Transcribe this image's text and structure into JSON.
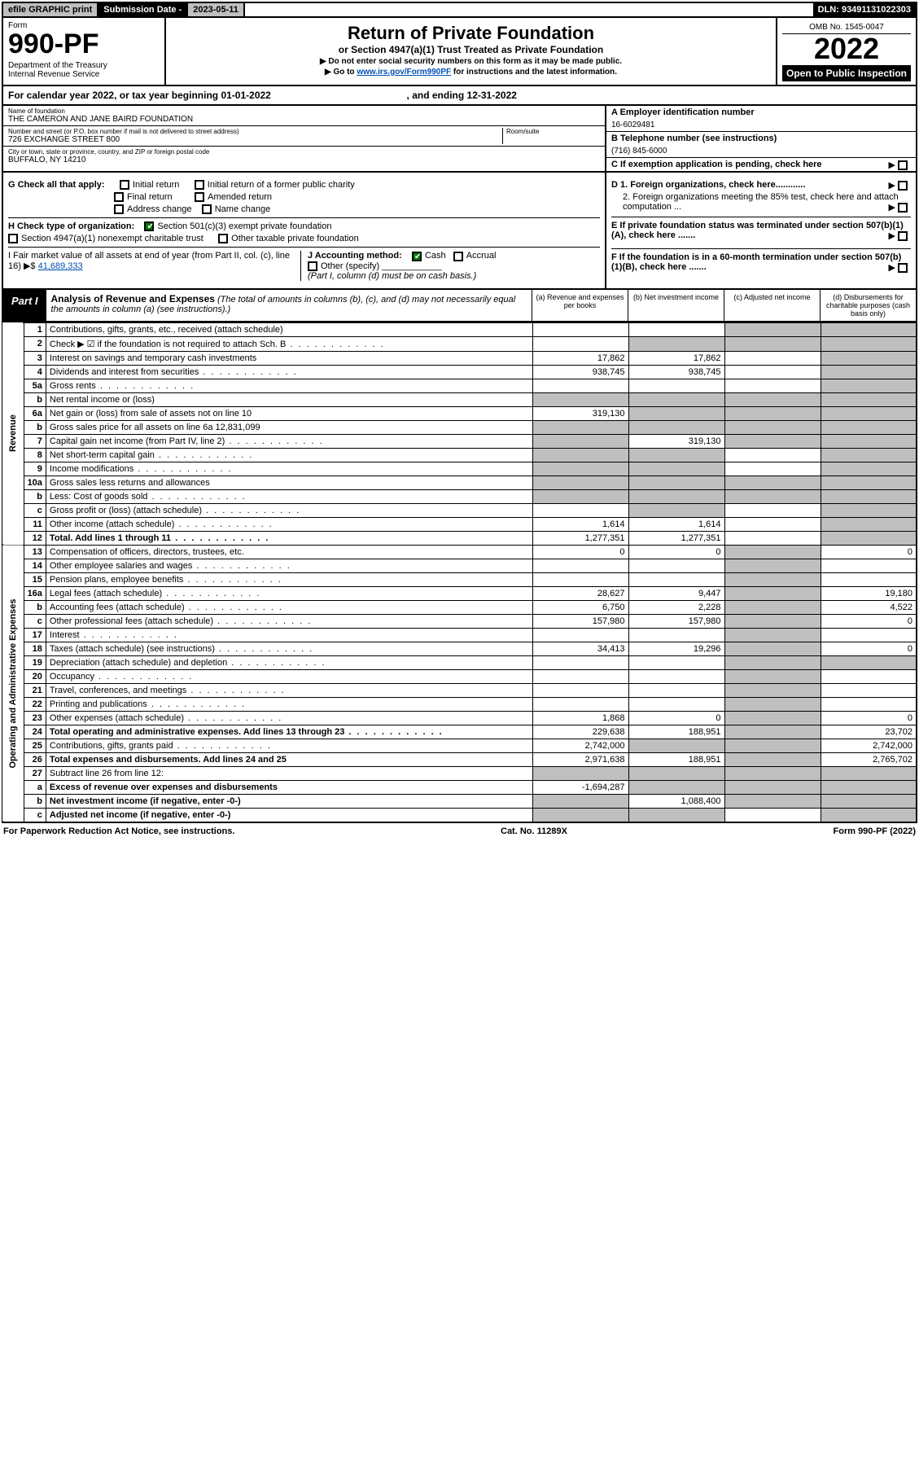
{
  "topbar": {
    "efile": "efile GRAPHIC print",
    "subLabel": "Submission Date - ",
    "subDate": "2023-05-11",
    "dln": "DLN: 93491131022303"
  },
  "header": {
    "formWord": "Form",
    "formNo": "990-PF",
    "dept": "Department of the Treasury\nInternal Revenue Service",
    "title": "Return of Private Foundation",
    "subtitle": "or Section 4947(a)(1) Trust Treated as Private Foundation",
    "instr1": "▶ Do not enter social security numbers on this form as it may be made public.",
    "instr2a": "▶ Go to ",
    "instr2link": "www.irs.gov/Form990PF",
    "instr2b": " for instructions and the latest information.",
    "omb": "OMB No. 1545-0047",
    "year": "2022",
    "open": "Open to Public Inspection"
  },
  "cal": {
    "text1": "For calendar year 2022, or tax year beginning ",
    "begin": "01-01-2022",
    "text2": ", and ending ",
    "end": "12-31-2022"
  },
  "info": {
    "nameLbl": "Name of foundation",
    "name": "THE CAMERON AND JANE BAIRD FOUNDATION",
    "addrLbl": "Number and street (or P.O. box number if mail is not delivered to street address)",
    "addr": "726 EXCHANGE STREET 800",
    "roomLbl": "Room/suite",
    "cityLbl": "City or town, state or province, country, and ZIP or foreign postal code",
    "city": "BUFFALO, NY  14210",
    "einLbl": "A Employer identification number",
    "ein": "16-6029481",
    "telLbl": "B Telephone number (see instructions)",
    "tel": "(716) 845-6000",
    "cLbl": "C If exemption application is pending, check here"
  },
  "checks": {
    "gLbl": "G Check all that apply:",
    "g1": "Initial return",
    "g2": "Initial return of a former public charity",
    "g3": "Final return",
    "g4": "Amended return",
    "g5": "Address change",
    "g6": "Name change",
    "hLbl": "H Check type of organization:",
    "h1": "Section 501(c)(3) exempt private foundation",
    "h2": "Section 4947(a)(1) nonexempt charitable trust",
    "h3": "Other taxable private foundation",
    "iLbl": "I Fair market value of all assets at end of year (from Part II, col. (c), line 16) ▶$",
    "iVal": "41,689,333",
    "jLbl": "J Accounting method:",
    "j1": "Cash",
    "j2": "Accrual",
    "j3": "Other (specify)",
    "jNote": "(Part I, column (d) must be on cash basis.)",
    "d1": "D 1. Foreign organizations, check here............",
    "d2": "2. Foreign organizations meeting the 85% test, check here and attach computation ...",
    "eLbl": "E  If private foundation status was terminated under section 507(b)(1)(A), check here .......",
    "fLbl": "F  If the foundation is in a 60-month termination under section 507(b)(1)(B), check here ......."
  },
  "part1": {
    "tag": "Part I",
    "title": "Analysis of Revenue and Expenses",
    "note": "(The total of amounts in columns (b), (c), and (d) may not necessarily equal the amounts in column (a) (see instructions).)",
    "colA": "(a) Revenue and expenses per books",
    "colB": "(b) Net investment income",
    "colC": "(c) Adjusted net income",
    "colD": "(d) Disbursements for charitable purposes (cash basis only)"
  },
  "sideLabels": {
    "rev": "Revenue",
    "exp": "Operating and Administrative Expenses"
  },
  "rows": [
    {
      "n": "1",
      "d": "Contributions, gifts, grants, etc., received (attach schedule)",
      "a": null,
      "b": null,
      "c": null,
      "dd": null,
      "grey": [
        "c",
        "dd"
      ]
    },
    {
      "n": "2",
      "d": "Check ▶ ☑ if the foundation is not required to attach Sch. B",
      "a": null,
      "b": null,
      "c": null,
      "dd": null,
      "grey": [
        "b",
        "c",
        "dd"
      ],
      "dots": true
    },
    {
      "n": "3",
      "d": "Interest on savings and temporary cash investments",
      "a": "17,862",
      "b": "17,862",
      "c": null,
      "dd": null,
      "grey": [
        "dd"
      ]
    },
    {
      "n": "4",
      "d": "Dividends and interest from securities",
      "a": "938,745",
      "b": "938,745",
      "c": null,
      "dd": null,
      "grey": [
        "dd"
      ],
      "dots": true
    },
    {
      "n": "5a",
      "d": "Gross rents",
      "a": null,
      "b": null,
      "c": null,
      "dd": null,
      "grey": [
        "dd"
      ],
      "dots": true
    },
    {
      "n": "b",
      "d": "Net rental income or (loss)",
      "a": null,
      "b": null,
      "c": null,
      "dd": null,
      "grey": [
        "a",
        "b",
        "c",
        "dd"
      ]
    },
    {
      "n": "6a",
      "d": "Net gain or (loss) from sale of assets not on line 10",
      "a": "319,130",
      "b": null,
      "c": null,
      "dd": null,
      "grey": [
        "b",
        "c",
        "dd"
      ]
    },
    {
      "n": "b",
      "d": "Gross sales price for all assets on line 6a           12,831,099",
      "a": null,
      "b": null,
      "c": null,
      "dd": null,
      "grey": [
        "a",
        "b",
        "c",
        "dd"
      ]
    },
    {
      "n": "7",
      "d": "Capital gain net income (from Part IV, line 2)",
      "a": null,
      "b": "319,130",
      "c": null,
      "dd": null,
      "grey": [
        "a",
        "c",
        "dd"
      ],
      "dots": true
    },
    {
      "n": "8",
      "d": "Net short-term capital gain",
      "a": null,
      "b": null,
      "c": null,
      "dd": null,
      "grey": [
        "a",
        "b",
        "dd"
      ],
      "dots": true
    },
    {
      "n": "9",
      "d": "Income modifications",
      "a": null,
      "b": null,
      "c": null,
      "dd": null,
      "grey": [
        "a",
        "b",
        "dd"
      ],
      "dots": true
    },
    {
      "n": "10a",
      "d": "Gross sales less returns and allowances",
      "a": null,
      "b": null,
      "c": null,
      "dd": null,
      "grey": [
        "a",
        "b",
        "c",
        "dd"
      ]
    },
    {
      "n": "b",
      "d": "Less: Cost of goods sold",
      "a": null,
      "b": null,
      "c": null,
      "dd": null,
      "grey": [
        "a",
        "b",
        "c",
        "dd"
      ],
      "dots": true
    },
    {
      "n": "c",
      "d": "Gross profit or (loss) (attach schedule)",
      "a": null,
      "b": null,
      "c": null,
      "dd": null,
      "grey": [
        "b",
        "dd"
      ],
      "dots": true
    },
    {
      "n": "11",
      "d": "Other income (attach schedule)",
      "a": "1,614",
      "b": "1,614",
      "c": null,
      "dd": null,
      "grey": [
        "dd"
      ],
      "dots": true
    },
    {
      "n": "12",
      "d": "Total. Add lines 1 through 11",
      "a": "1,277,351",
      "b": "1,277,351",
      "c": null,
      "dd": null,
      "grey": [
        "dd"
      ],
      "dots": true,
      "bold": true
    }
  ],
  "expRows": [
    {
      "n": "13",
      "d": "Compensation of officers, directors, trustees, etc.",
      "a": "0",
      "b": "0",
      "c": null,
      "dd": "0",
      "grey": [
        "c"
      ]
    },
    {
      "n": "14",
      "d": "Other employee salaries and wages",
      "a": null,
      "b": null,
      "c": null,
      "dd": null,
      "grey": [
        "c"
      ],
      "dots": true
    },
    {
      "n": "15",
      "d": "Pension plans, employee benefits",
      "a": null,
      "b": null,
      "c": null,
      "dd": null,
      "grey": [
        "c"
      ],
      "dots": true
    },
    {
      "n": "16a",
      "d": "Legal fees (attach schedule)",
      "a": "28,627",
      "b": "9,447",
      "c": null,
      "dd": "19,180",
      "grey": [
        "c"
      ],
      "dots": true
    },
    {
      "n": "b",
      "d": "Accounting fees (attach schedule)",
      "a": "6,750",
      "b": "2,228",
      "c": null,
      "dd": "4,522",
      "grey": [
        "c"
      ],
      "dots": true
    },
    {
      "n": "c",
      "d": "Other professional fees (attach schedule)",
      "a": "157,980",
      "b": "157,980",
      "c": null,
      "dd": "0",
      "grey": [
        "c"
      ],
      "dots": true
    },
    {
      "n": "17",
      "d": "Interest",
      "a": null,
      "b": null,
      "c": null,
      "dd": null,
      "grey": [
        "c"
      ],
      "dots": true
    },
    {
      "n": "18",
      "d": "Taxes (attach schedule) (see instructions)",
      "a": "34,413",
      "b": "19,296",
      "c": null,
      "dd": "0",
      "grey": [
        "c"
      ],
      "dots": true
    },
    {
      "n": "19",
      "d": "Depreciation (attach schedule) and depletion",
      "a": null,
      "b": null,
      "c": null,
      "dd": null,
      "grey": [
        "c",
        "dd"
      ],
      "dots": true
    },
    {
      "n": "20",
      "d": "Occupancy",
      "a": null,
      "b": null,
      "c": null,
      "dd": null,
      "grey": [
        "c"
      ],
      "dots": true
    },
    {
      "n": "21",
      "d": "Travel, conferences, and meetings",
      "a": null,
      "b": null,
      "c": null,
      "dd": null,
      "grey": [
        "c"
      ],
      "dots": true
    },
    {
      "n": "22",
      "d": "Printing and publications",
      "a": null,
      "b": null,
      "c": null,
      "dd": null,
      "grey": [
        "c"
      ],
      "dots": true
    },
    {
      "n": "23",
      "d": "Other expenses (attach schedule)",
      "a": "1,868",
      "b": "0",
      "c": null,
      "dd": "0",
      "grey": [
        "c"
      ],
      "dots": true
    },
    {
      "n": "24",
      "d": "Total operating and administrative expenses. Add lines 13 through 23",
      "a": "229,638",
      "b": "188,951",
      "c": null,
      "dd": "23,702",
      "grey": [
        "c"
      ],
      "dots": true,
      "bold": true
    },
    {
      "n": "25",
      "d": "Contributions, gifts, grants paid",
      "a": "2,742,000",
      "b": null,
      "c": null,
      "dd": "2,742,000",
      "grey": [
        "b",
        "c"
      ],
      "dots": true
    },
    {
      "n": "26",
      "d": "Total expenses and disbursements. Add lines 24 and 25",
      "a": "2,971,638",
      "b": "188,951",
      "c": null,
      "dd": "2,765,702",
      "grey": [
        "c"
      ],
      "bold": true
    },
    {
      "n": "27",
      "d": "Subtract line 26 from line 12:",
      "a": null,
      "b": null,
      "c": null,
      "dd": null,
      "grey": [
        "a",
        "b",
        "c",
        "dd"
      ]
    },
    {
      "n": "a",
      "d": "Excess of revenue over expenses and disbursements",
      "a": "-1,694,287",
      "b": null,
      "c": null,
      "dd": null,
      "grey": [
        "b",
        "c",
        "dd"
      ],
      "bold": true
    },
    {
      "n": "b",
      "d": "Net investment income (if negative, enter -0-)",
      "a": null,
      "b": "1,088,400",
      "c": null,
      "dd": null,
      "grey": [
        "a",
        "c",
        "dd"
      ],
      "bold": true
    },
    {
      "n": "c",
      "d": "Adjusted net income (if negative, enter -0-)",
      "a": null,
      "b": null,
      "c": null,
      "dd": null,
      "grey": [
        "a",
        "b",
        "dd"
      ],
      "bold": true
    }
  ],
  "footer": {
    "left": "For Paperwork Reduction Act Notice, see instructions.",
    "mid": "Cat. No. 11289X",
    "right": "Form 990-PF (2022)"
  }
}
